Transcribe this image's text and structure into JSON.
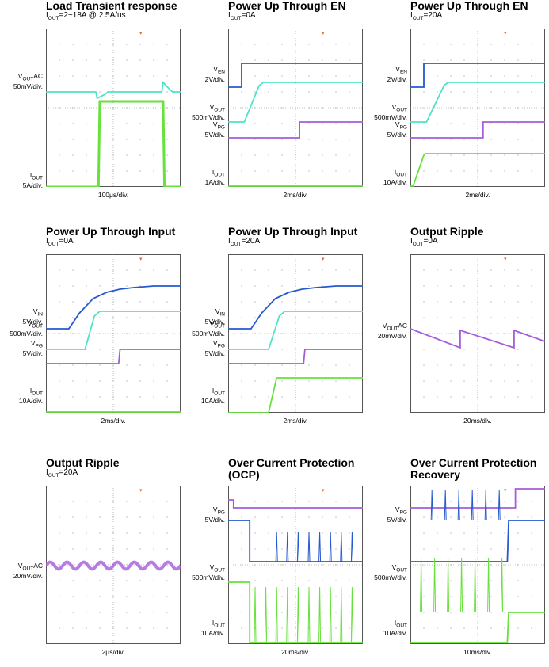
{
  "colors": {
    "blue": "#2659cf",
    "cyan": "#4fe3c6",
    "purple": "#a55ddc",
    "green": "#67e13b",
    "trigger": "#e8692b"
  },
  "panels": [
    {
      "title": [
        "Load Transient response"
      ],
      "subtitle": {
        "pre": "I",
        "sub": "OUT",
        "post": "=2~18A @ 2.5A/us"
      },
      "timebase": "100μs/div.",
      "labels": [
        {
          "l1": {
            "pre": "V",
            "sub": "OUT",
            "post": "AC"
          },
          "l2": "50mV/div."
        },
        {
          "l1": {
            "pre": "I",
            "sub": "OUT",
            "post": ""
          },
          "l2": "5A/div."
        }
      ],
      "chart_data": {
        "type": "line",
        "xlabel": "100μs/div.",
        "series": [
          {
            "color": "cyan",
            "x": [
              0,
              3.7,
              3.8,
              4.4,
              4.6,
              8.6,
              8.7,
              9.2,
              9.4,
              10
            ],
            "y": [
              6,
              6,
              5.6,
              5.85,
              6,
              6,
              6.6,
              6.15,
              6,
              6
            ]
          },
          {
            "color": "green",
            "x": [
              0,
              3.9,
              4.0,
              8.7,
              8.8,
              10
            ],
            "y": [
              0,
              0,
              5.4,
              5.4,
              0,
              0
            ]
          }
        ]
      }
    },
    {
      "title": [
        "Power Up Through EN"
      ],
      "subtitle": {
        "pre": "I",
        "sub": "OUT",
        "post": "=0A"
      },
      "timebase": "2ms/div.",
      "labels": [
        {
          "l1": {
            "pre": "V",
            "sub": "EN",
            "post": ""
          },
          "l2": "2V/div."
        },
        {
          "l1": {
            "pre": "V",
            "sub": "OUT",
            "post": ""
          },
          "l2": "500mV/div."
        },
        {
          "l1": {
            "pre": "V",
            "sub": "PG",
            "post": ""
          },
          "l2": "5V/div."
        },
        {
          "l1": {
            "pre": "I",
            "sub": "OUT",
            "post": ""
          },
          "l2": "1A/div."
        }
      ],
      "chart_data": {
        "type": "line",
        "xlabel": "2ms/div.",
        "series": [
          {
            "color": "blue",
            "x": [
              0,
              1.0,
              1.0,
              10
            ],
            "y": [
              6.3,
              6.3,
              7.8,
              7.8
            ]
          },
          {
            "color": "cyan",
            "x": [
              0,
              1.2,
              2.3,
              2.6,
              10
            ],
            "y": [
              4.1,
              4.1,
              6.4,
              6.6,
              6.6
            ]
          },
          {
            "color": "purple",
            "x": [
              0,
              5.3,
              5.3,
              10
            ],
            "y": [
              3.1,
              3.1,
              4.1,
              4.1
            ]
          },
          {
            "color": "green",
            "x": [
              0,
              10
            ],
            "y": [
              0.05,
              0.05
            ]
          }
        ]
      }
    },
    {
      "title": [
        "Power Up Through EN"
      ],
      "subtitle": {
        "pre": "I",
        "sub": "OUT",
        "post": "=20A"
      },
      "timebase": "2ms/div.",
      "labels": [
        {
          "l1": {
            "pre": "V",
            "sub": "EN",
            "post": ""
          },
          "l2": "2V/div."
        },
        {
          "l1": {
            "pre": "V",
            "sub": "OUT",
            "post": ""
          },
          "l2": "500mV/div."
        },
        {
          "l1": {
            "pre": "V",
            "sub": "PG",
            "post": ""
          },
          "l2": "5V/div."
        },
        {
          "l1": {
            "pre": "I",
            "sub": "OUT",
            "post": ""
          },
          "l2": "10A/div."
        }
      ],
      "chart_data": {
        "type": "line",
        "xlabel": "2ms/div.",
        "series": [
          {
            "color": "blue",
            "x": [
              0,
              1.0,
              1.0,
              10
            ],
            "y": [
              6.3,
              6.3,
              7.8,
              7.8
            ]
          },
          {
            "color": "cyan",
            "x": [
              0,
              1.2,
              2.5,
              2.8,
              10
            ],
            "y": [
              4.1,
              4.1,
              6.4,
              6.6,
              6.6
            ]
          },
          {
            "color": "purple",
            "x": [
              0,
              5.4,
              5.4,
              10
            ],
            "y": [
              3.1,
              3.1,
              4.1,
              4.1
            ]
          },
          {
            "color": "green",
            "x": [
              0,
              0.2,
              1.0,
              1.1,
              10
            ],
            "y": [
              0.05,
              0.05,
              2.0,
              2.1,
              2.1
            ]
          }
        ]
      }
    },
    {
      "title": [
        "Power Up Through Input"
      ],
      "subtitle": {
        "pre": "I",
        "sub": "OUT",
        "post": "=0A"
      },
      "timebase": "2ms/div.",
      "labels": [
        {
          "l1": {
            "pre": "V",
            "sub": "IN",
            "post": ""
          },
          "l2": "5V/div."
        },
        {
          "l1": {
            "pre": "V",
            "sub": "OUT",
            "post": ""
          },
          "l2": "500mV/div."
        },
        {
          "l1": {
            "pre": "V",
            "sub": "PG",
            "post": ""
          },
          "l2": "5V/div."
        },
        {
          "l1": {
            "pre": "I",
            "sub": "OUT",
            "post": ""
          },
          "l2": "10A/div."
        }
      ],
      "chart_data": {
        "type": "line",
        "xlabel": "2ms/div.",
        "series": [
          {
            "color": "blue",
            "x": [
              0,
              1.7,
              2.5,
              3.5,
              4.5,
              5.5,
              6.5,
              8,
              10
            ],
            "y": [
              5.3,
              5.3,
              6.3,
              7.2,
              7.6,
              7.8,
              7.9,
              8.0,
              8.0
            ]
          },
          {
            "color": "cyan",
            "x": [
              0,
              2.9,
              3.6,
              4.0,
              10
            ],
            "y": [
              4.0,
              4.0,
              6.1,
              6.4,
              6.4
            ]
          },
          {
            "color": "purple",
            "x": [
              0,
              5.4,
              5.5,
              10
            ],
            "y": [
              3.1,
              3.1,
              4.0,
              4.0
            ]
          },
          {
            "color": "green",
            "x": [
              0,
              10
            ],
            "y": [
              0.05,
              0.05
            ]
          }
        ]
      }
    },
    {
      "title": [
        "Power Up Through Input"
      ],
      "subtitle": {
        "pre": "I",
        "sub": "OUT",
        "post": "=20A"
      },
      "timebase": "2ms/div.",
      "labels": [
        {
          "l1": {
            "pre": "V",
            "sub": "IN",
            "post": ""
          },
          "l2": "5V/div."
        },
        {
          "l1": {
            "pre": "V",
            "sub": "OUT",
            "post": ""
          },
          "l2": "500mV/div."
        },
        {
          "l1": {
            "pre": "V",
            "sub": "PG",
            "post": ""
          },
          "l2": "5V/div."
        },
        {
          "l1": {
            "pre": "I",
            "sub": "OUT",
            "post": ""
          },
          "l2": "10A/div."
        }
      ],
      "chart_data": {
        "type": "line",
        "xlabel": "2ms/div.",
        "series": [
          {
            "color": "blue",
            "x": [
              0,
              1.7,
              2.5,
              3.5,
              4.5,
              5.5,
              6.5,
              8,
              10
            ],
            "y": [
              5.3,
              5.3,
              6.3,
              7.2,
              7.6,
              7.8,
              7.9,
              8.0,
              8.0
            ]
          },
          {
            "color": "cyan",
            "x": [
              0,
              3.0,
              3.8,
              4.2,
              10
            ],
            "y": [
              4.0,
              4.0,
              6.1,
              6.4,
              6.4
            ]
          },
          {
            "color": "purple",
            "x": [
              0,
              5.6,
              5.7,
              10
            ],
            "y": [
              3.1,
              3.1,
              4.0,
              4.0
            ]
          },
          {
            "color": "green",
            "x": [
              0,
              3.0,
              3.6,
              10
            ],
            "y": [
              0.0,
              0.0,
              2.2,
              2.2
            ]
          }
        ]
      }
    },
    {
      "title": [
        "Output Ripple"
      ],
      "subtitle": {
        "pre": "I",
        "sub": "OUT",
        "post": "=0A"
      },
      "timebase": "20ms/div.",
      "labels": [
        {
          "l1": {
            "pre": "V",
            "sub": "OUT",
            "post": "AC"
          },
          "l2": "20mV/div."
        }
      ],
      "chart_data": {
        "type": "line",
        "xlabel": "20ms/div.",
        "series": [
          {
            "color": "purple",
            "x": [
              0,
              3.7,
              3.7,
              7.7,
              7.7,
              10
            ],
            "y": [
              5.3,
              4.1,
              5.2,
              4.1,
              5.2,
              4.5
            ]
          }
        ]
      }
    },
    {
      "title": [
        "Output Ripple"
      ],
      "subtitle": {
        "pre": "I",
        "sub": "OUT",
        "post": "=20A"
      },
      "timebase": "2μs/div.",
      "labels": [
        {
          "l1": {
            "pre": "V",
            "sub": "OUT",
            "post": "AC"
          },
          "l2": "20mV/div."
        }
      ],
      "chart_data": {
        "type": "line",
        "xlabel": "2μs/div.",
        "series": [
          {
            "color": "purple",
            "kind": "sine",
            "base": 4.95,
            "amp": 0.22,
            "period": 1.25
          }
        ]
      }
    },
    {
      "title": [
        "Over Current Protection",
        "(OCP)"
      ],
      "subtitle": null,
      "timebase": "20ms/div.",
      "labels": [
        {
          "l1": {
            "pre": "V",
            "sub": "PG",
            "post": ""
          },
          "l2": "5V/div."
        },
        {
          "l1": {
            "pre": "V",
            "sub": "OUT",
            "post": ""
          },
          "l2": "500mV/div."
        },
        {
          "l1": {
            "pre": "I",
            "sub": "OUT",
            "post": ""
          },
          "l2": "10A/div."
        }
      ],
      "chart_data": {
        "type": "line",
        "xlabel": "20ms/div.",
        "series": [
          {
            "color": "purple",
            "x": [
              0,
              0.4,
              0.4,
              10
            ],
            "y": [
              9.1,
              9.1,
              8.6,
              8.6
            ]
          },
          {
            "color": "blue",
            "x": [
              0,
              1.6,
              1.6,
              10
            ],
            "y": [
              7.8,
              7.8,
              5.2,
              5.2
            ],
            "spikes": [
              3.6,
              4.4,
              5.2,
              6.0,
              6.8,
              7.6,
              8.4,
              9.2
            ],
            "spikeH": 1.9
          },
          {
            "color": "green",
            "x": [
              0,
              1.6,
              1.6,
              10
            ],
            "y": [
              3.9,
              3.9,
              0.1,
              0.1
            ],
            "spikes": [
              2.0,
              2.8,
              3.6,
              4.4,
              5.2,
              6.0,
              6.8,
              7.6,
              8.4,
              9.2
            ],
            "spikeH": 3.5
          }
        ]
      }
    },
    {
      "title": [
        "Over Current Protection",
        "Recovery"
      ],
      "subtitle": null,
      "timebase": "10ms/div.",
      "labels": [
        {
          "l1": {
            "pre": "V",
            "sub": "PG",
            "post": ""
          },
          "l2": "5V/div."
        },
        {
          "l1": {
            "pre": "V",
            "sub": "OUT",
            "post": ""
          },
          "l2": "500mV/div."
        },
        {
          "l1": {
            "pre": "I",
            "sub": "OUT",
            "post": ""
          },
          "l2": "10A/div."
        }
      ],
      "chart_data": {
        "type": "line",
        "xlabel": "10ms/div.",
        "series": [
          {
            "color": "purple",
            "x": [
              0,
              7.8,
              7.8,
              10
            ],
            "y": [
              8.6,
              8.6,
              9.8,
              9.8
            ]
          },
          {
            "color": "blue",
            "x": [
              0,
              7.2,
              7.3,
              10
            ],
            "y": [
              5.2,
              5.2,
              7.8,
              7.8
            ],
            "spikes": [
              1.6,
              2.6,
              3.6,
              4.6,
              5.6,
              6.6
            ],
            "spikeH": 1.9
          },
          {
            "color": "green",
            "x": [
              0,
              7.2,
              7.3,
              10
            ],
            "y": [
              0.1,
              0.1,
              2.0,
              2.0
            ],
            "spikes": [
              0.8,
              1.8,
              2.8,
              3.8,
              4.8,
              5.8,
              6.8
            ],
            "spikeH": 3.4
          }
        ]
      }
    }
  ]
}
